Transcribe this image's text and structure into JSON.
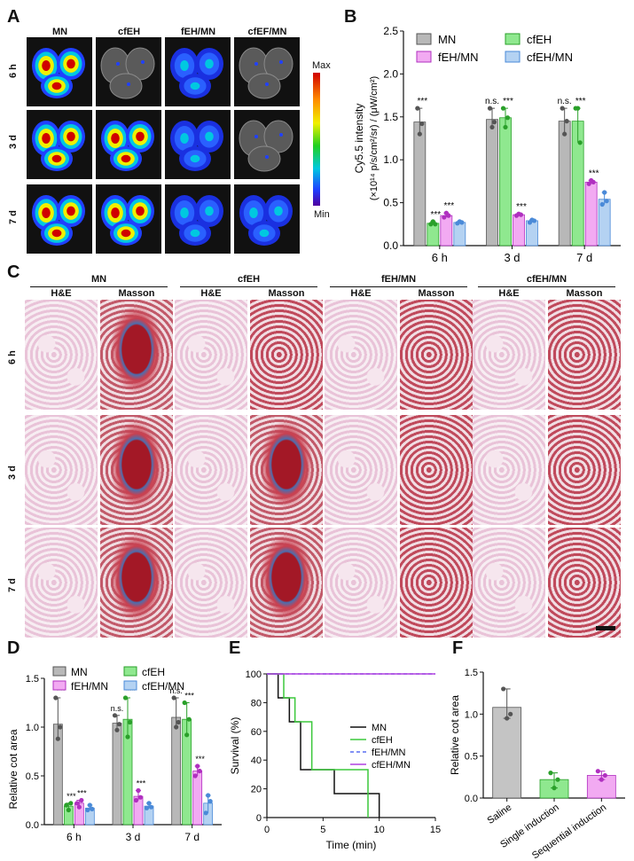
{
  "panels": {
    "A": {
      "label": "A",
      "columns": [
        "MN",
        "cfEH",
        "fEH/MN",
        "cfEF/MN"
      ],
      "rows": [
        "6 h",
        "3 d",
        "7 d"
      ],
      "scale_max": "Max",
      "scale_min": "Min"
    },
    "C": {
      "label": "C",
      "groups": [
        "MN",
        "cfEH",
        "fEH/MN",
        "cfEH/MN"
      ],
      "stains": [
        "H&E",
        "Masson"
      ],
      "rows": [
        "6 h",
        "3 d",
        "7 d"
      ]
    }
  },
  "chart_data": [
    {
      "panel": "B",
      "type": "bar",
      "categories": [
        "6 h",
        "3 d",
        "7 d"
      ],
      "ylabel": "Cy5.5 intensity (×10¹⁴ p/s/cm²/sr) / (μW/cm²)",
      "ylabel_line1": "Cy5.5 intensity",
      "ylabel_line2": "(×10¹⁴ p/s/cm²/sr) / (μW/cm²)",
      "ylim": [
        0,
        2.5
      ],
      "yticks": [
        "0.0",
        "0.5",
        "1.0",
        "1.5",
        "2.0",
        "2.5"
      ],
      "legend": "top",
      "series": [
        {
          "name": "MN",
          "color": "#b8b8b8",
          "values": [
            1.44,
            1.47,
            1.45
          ],
          "points": [
            [
              1.6,
              1.3,
              1.42
            ],
            [
              1.6,
              1.38,
              1.44
            ],
            [
              1.6,
              1.3,
              1.45
            ]
          ]
        },
        {
          "name": "cfEH",
          "color": "#8fe88f",
          "values": [
            0.26,
            1.49,
            1.45
          ],
          "points": [
            [
              0.25,
              0.28,
              0.25
            ],
            [
              1.6,
              1.38,
              1.49
            ],
            [
              1.6,
              1.6,
              1.2
            ]
          ]
        },
        {
          "name": "fEH/MN",
          "color": "#f2aaf2",
          "values": [
            0.35,
            0.36,
            0.74
          ],
          "points": [
            [
              0.33,
              0.38,
              0.35
            ],
            [
              0.35,
              0.37,
              0.36
            ],
            [
              0.72,
              0.76,
              0.74
            ]
          ]
        },
        {
          "name": "cfEH/MN",
          "color": "#b4d2f2",
          "values": [
            0.27,
            0.29,
            0.54
          ],
          "points": [
            [
              0.26,
              0.28,
              0.27
            ],
            [
              0.27,
              0.3,
              0.29
            ],
            [
              0.48,
              0.62,
              0.52
            ]
          ]
        }
      ],
      "annotations": [
        [
          "***",
          "***",
          "***"
        ],
        [
          "n.s.",
          "***",
          "***"
        ],
        [
          "n.s.",
          "***",
          "***"
        ]
      ]
    },
    {
      "panel": "D",
      "type": "bar",
      "categories": [
        "6 h",
        "3 d",
        "7 d"
      ],
      "ylabel": "Relative cot area",
      "ylim": [
        0,
        1.5
      ],
      "yticks": [
        "0.0",
        "0.5",
        "1.0",
        "1.5"
      ],
      "legend": "top",
      "series": [
        {
          "name": "MN",
          "color": "#b8b8b8",
          "values": [
            1.03,
            1.04,
            1.1
          ],
          "points": [
            [
              1.3,
              0.88,
              1.0
            ],
            [
              1.12,
              0.97,
              1.03
            ],
            [
              1.3,
              1.0,
              1.05
            ]
          ]
        },
        {
          "name": "cfEH",
          "color": "#8fe88f",
          "values": [
            0.19,
            1.08,
            1.08
          ],
          "points": [
            [
              0.2,
              0.15,
              0.22
            ],
            [
              1.3,
              0.9,
              1.05
            ],
            [
              1.25,
              0.92,
              1.08
            ]
          ]
        },
        {
          "name": "fEH/MN",
          "color": "#f2aaf2",
          "values": [
            0.22,
            0.29,
            0.55
          ],
          "points": [
            [
              0.22,
              0.18,
              0.25
            ],
            [
              0.25,
              0.35,
              0.28
            ],
            [
              0.5,
              0.6,
              0.55
            ]
          ]
        },
        {
          "name": "cfEH/MN",
          "color": "#b4d2f2",
          "values": [
            0.17,
            0.19,
            0.22
          ],
          "points": [
            [
              0.15,
              0.2,
              0.16
            ],
            [
              0.17,
              0.22,
              0.18
            ],
            [
              0.12,
              0.3,
              0.24
            ]
          ]
        }
      ],
      "annotations": [
        [
          "***",
          "***",
          "***"
        ],
        [
          "n.s.",
          "***",
          "***"
        ],
        [
          "n.s.",
          "***",
          "***"
        ]
      ]
    },
    {
      "panel": "E",
      "type": "line",
      "xlabel": "Time (min)",
      "ylabel": "Survival (%)",
      "xlim": [
        0,
        15
      ],
      "ylim": [
        0,
        100
      ],
      "xticks": [
        "0",
        "5",
        "10",
        "15"
      ],
      "yticks": [
        "0",
        "20",
        "40",
        "60",
        "80",
        "100"
      ],
      "legend": "right",
      "series": [
        {
          "name": "MN",
          "color": "#111111",
          "dash": "",
          "x": [
            0,
            1,
            1,
            2,
            2,
            3,
            3,
            6,
            6,
            10,
            10
          ],
          "y": [
            100,
            100,
            83.3,
            83.3,
            66.7,
            66.7,
            33.3,
            33.3,
            16.7,
            16.7,
            0
          ]
        },
        {
          "name": "cfEH",
          "color": "#3cc83c",
          "dash": "",
          "x": [
            0,
            1.5,
            1.5,
            2.5,
            2.5,
            4,
            4,
            9,
            9
          ],
          "y": [
            100,
            100,
            83.3,
            83.3,
            66.7,
            66.7,
            33.3,
            33.3,
            0
          ]
        },
        {
          "name": "fEH/MN",
          "color": "#5a6ef0",
          "dash": "4,3",
          "x": [
            0,
            15
          ],
          "y": [
            100,
            100
          ]
        },
        {
          "name": "cfEH/MN",
          "color": "#b040e0",
          "dash": "",
          "x": [
            0,
            15
          ],
          "y": [
            100,
            100
          ]
        }
      ]
    },
    {
      "panel": "F",
      "type": "bar",
      "categories": [
        "Saline",
        "Single induction",
        "Sequential induction"
      ],
      "ylabel": "Relative cot area",
      "ylim": [
        0,
        1.5
      ],
      "yticks": [
        "0.0",
        "0.5",
        "1.0",
        "1.5"
      ],
      "colors": [
        "#c4c4c4",
        "#8fe88f",
        "#f2aaf2"
      ],
      "values": [
        1.08,
        0.22,
        0.27
      ],
      "points": [
        [
          1.3,
          0.95,
          1.0
        ],
        [
          0.3,
          0.12,
          0.22
        ],
        [
          0.32,
          0.22,
          0.27
        ]
      ]
    }
  ]
}
